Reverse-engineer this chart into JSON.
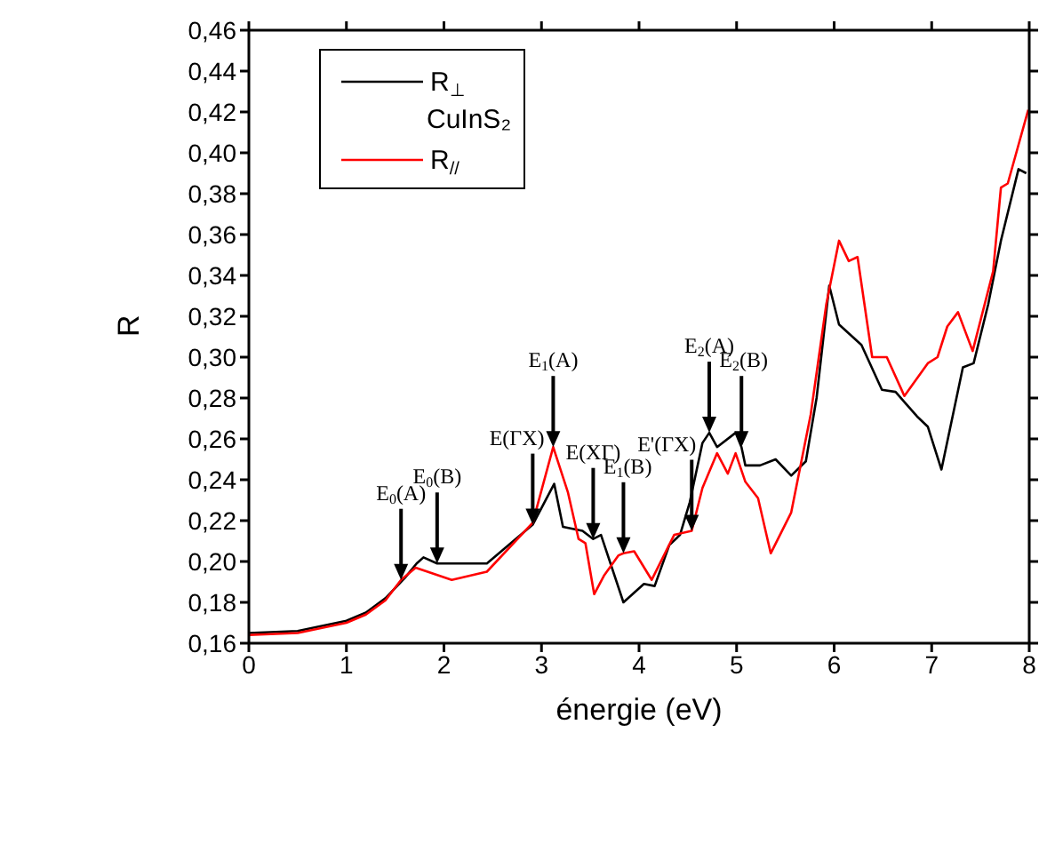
{
  "chart_data": {
    "type": "line",
    "xlabel": "énergie (eV)",
    "ylabel": "R",
    "legend_title": "CuInS₂",
    "legend": "top left",
    "marker": "none",
    "line_style": "solid",
    "grid": false,
    "xlim": [
      0,
      8
    ],
    "xticks": [
      0,
      1,
      2,
      3,
      4,
      5,
      6,
      7,
      8
    ],
    "ylim": [
      0.16,
      0.46
    ],
    "yticks": [
      {
        "value": 0.16,
        "label": "0,16"
      },
      {
        "value": 0.18,
        "label": "0,18"
      },
      {
        "value": 0.2,
        "label": "0,20"
      },
      {
        "value": 0.22,
        "label": "0,22"
      },
      {
        "value": 0.24,
        "label": "0,24"
      },
      {
        "value": 0.26,
        "label": "0,26"
      },
      {
        "value": 0.28,
        "label": "0,28"
      },
      {
        "value": 0.3,
        "label": "0,30"
      },
      {
        "value": 0.32,
        "label": "0,32"
      },
      {
        "value": 0.34,
        "label": "0,34"
      },
      {
        "value": 0.36,
        "label": "0,36"
      },
      {
        "value": 0.38,
        "label": "0,38"
      },
      {
        "value": 0.4,
        "label": "0,40"
      },
      {
        "value": 0.42,
        "label": "0,42"
      },
      {
        "value": 0.44,
        "label": "0,44"
      },
      {
        "value": 0.46,
        "label": "0,46"
      }
    ],
    "series": [
      {
        "name": "R$_{⊥}$",
        "color": "#000000",
        "x": [
          0,
          0.5,
          1,
          1.2,
          1.4,
          1.6,
          1.72,
          1.79,
          1.93,
          2.44,
          2.91,
          3.13,
          3.22,
          3.42,
          3.53,
          3.61,
          3.84,
          4.05,
          4.16,
          4.31,
          4.42,
          4.52,
          4.65,
          4.72,
          4.8,
          4.99,
          5.05,
          5.09,
          5.24,
          5.4,
          5.56,
          5.71,
          5.82,
          5.95,
          6.05,
          6.28,
          6.49,
          6.63,
          6.85,
          6.96,
          7.1,
          7.32,
          7.43,
          7.58,
          7.71,
          7.89,
          7.97
        ],
        "values": [
          0.165,
          0.166,
          0.171,
          0.175,
          0.182,
          0.192,
          0.199,
          0.202,
          0.199,
          0.199,
          0.218,
          0.238,
          0.217,
          0.215,
          0.211,
          0.213,
          0.18,
          0.189,
          0.188,
          0.208,
          0.213,
          0.229,
          0.258,
          0.263,
          0.256,
          0.263,
          0.256,
          0.247,
          0.247,
          0.25,
          0.242,
          0.249,
          0.28,
          0.335,
          0.316,
          0.306,
          0.284,
          0.283,
          0.271,
          0.266,
          0.245,
          0.295,
          0.297,
          0.326,
          0.357,
          0.392,
          0.39
        ]
      },
      {
        "name": "R$_{//}$",
        "color": "#ff0000",
        "x": [
          0,
          0.5,
          1,
          1.2,
          1.4,
          1.56,
          1.71,
          2.08,
          2.44,
          2.91,
          3.12,
          3.27,
          3.38,
          3.45,
          3.54,
          3.64,
          3.79,
          3.84,
          3.95,
          4.13,
          4.36,
          4.54,
          4.65,
          4.8,
          4.91,
          4.99,
          5.09,
          5.22,
          5.35,
          5.56,
          5.76,
          5.92,
          6.05,
          6.15,
          6.24,
          6.39,
          6.54,
          6.72,
          6.96,
          7.06,
          7.16,
          7.27,
          7.42,
          7.63,
          7.71,
          7.78,
          7.99
        ],
        "values": [
          0.164,
          0.165,
          0.17,
          0.174,
          0.181,
          0.191,
          0.197,
          0.191,
          0.195,
          0.219,
          0.256,
          0.234,
          0.211,
          0.209,
          0.184,
          0.193,
          0.203,
          0.204,
          0.205,
          0.191,
          0.213,
          0.215,
          0.236,
          0.253,
          0.243,
          0.253,
          0.239,
          0.231,
          0.204,
          0.224,
          0.272,
          0.326,
          0.357,
          0.347,
          0.349,
          0.3,
          0.3,
          0.281,
          0.297,
          0.3,
          0.315,
          0.322,
          0.303,
          0.342,
          0.383,
          0.385,
          0.421
        ]
      }
    ],
    "annotations": [
      {
        "text": "E$_{0}$(A)",
        "x": 1.56,
        "y": 0.191
      },
      {
        "text": "E$_{0}$(B)",
        "x": 1.93,
        "y": 0.199
      },
      {
        "text": "E(ΓX)",
        "x": 2.91,
        "y": 0.218
      },
      {
        "text": "E$_{1}$(A)",
        "x": 3.12,
        "y": 0.256
      },
      {
        "text": "E(XΓ)",
        "x": 3.53,
        "y": 0.211
      },
      {
        "text": "E$_{1}$(B)",
        "x": 3.84,
        "y": 0.204
      },
      {
        "text": "E'(ΓX)",
        "x": 4.54,
        "y": 0.215
      },
      {
        "text": "E$_{2}$(A)",
        "x": 4.72,
        "y": 0.263
      },
      {
        "text": "E$_{2}$(B)",
        "x": 5.05,
        "y": 0.256
      }
    ]
  }
}
